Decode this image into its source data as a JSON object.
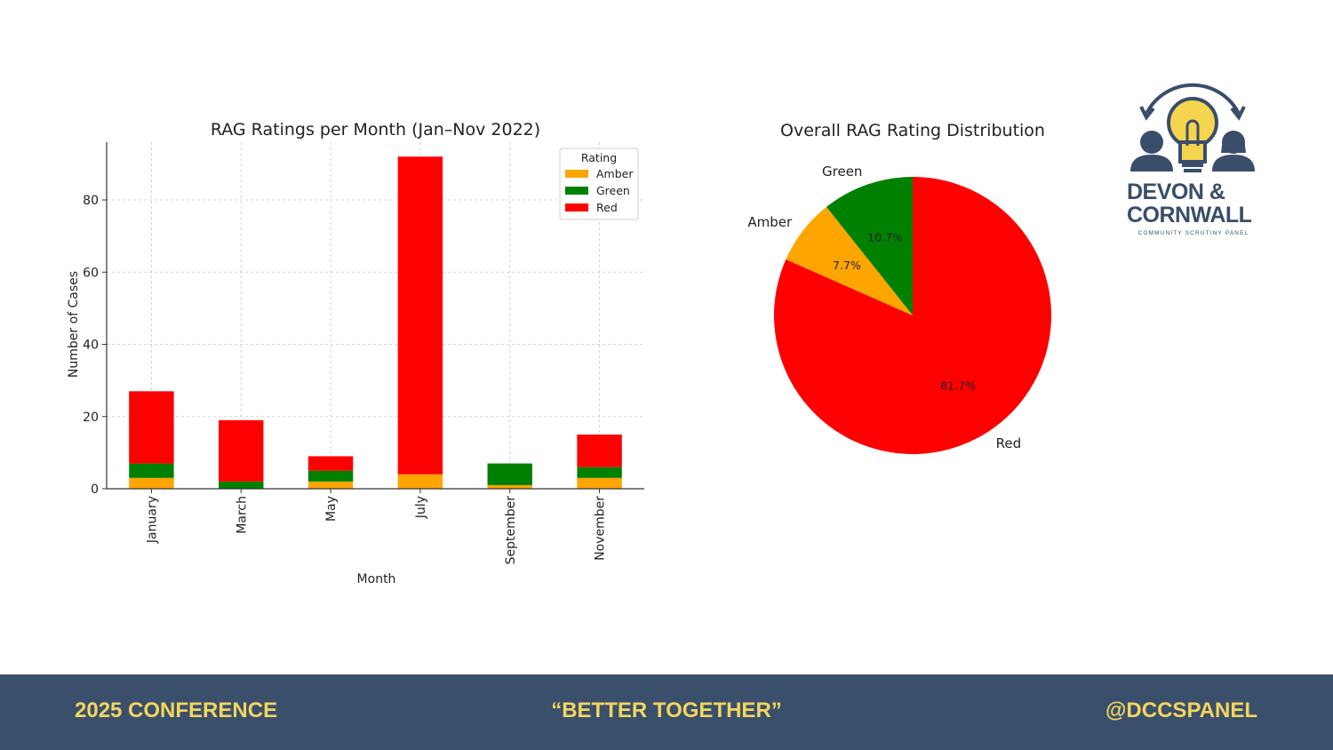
{
  "chart_data": [
    {
      "type": "bar",
      "stacked": true,
      "title": "RAG Ratings per Month (Jan–Nov 2022)",
      "xlabel": "Month",
      "ylabel": "Number of Cases",
      "categories": [
        "January",
        "March",
        "May",
        "July",
        "September",
        "November"
      ],
      "series": [
        {
          "name": "Amber",
          "color": "#ffa500",
          "values": [
            3,
            0,
            2,
            4,
            1,
            3
          ]
        },
        {
          "name": "Green",
          "color": "#008000",
          "values": [
            4,
            2,
            3,
            0,
            6,
            3
          ]
        },
        {
          "name": "Red",
          "color": "#ff0000",
          "values": [
            20,
            17,
            4,
            88,
            0,
            9
          ]
        }
      ],
      "yticks": [
        0,
        20,
        40,
        60,
        80
      ],
      "ylim": [
        0,
        96
      ],
      "grid": true,
      "legend": {
        "title": "Rating",
        "position": "top-right"
      }
    },
    {
      "type": "pie",
      "title": "Overall RAG Rating Distribution",
      "slices": [
        {
          "label": "Green",
          "value": 10.7,
          "pct_label": "10.7%",
          "color": "#008000"
        },
        {
          "label": "Amber",
          "value": 7.7,
          "pct_label": "7.7%",
          "color": "#ffa500"
        },
        {
          "label": "Red",
          "value": 81.7,
          "pct_label": "81.7%",
          "color": "#ff0000"
        }
      ],
      "start_angle_deg": 90,
      "direction": "counterclockwise"
    }
  ],
  "logo": {
    "line1": "DEVON &",
    "line2": "CORNWALL",
    "subtitle": "COMMUNITY SCRUTINY PANEL",
    "color": "#3a4d6b",
    "bulb_color": "#f5d54e"
  },
  "footer": {
    "left": "2025 CONFERENCE",
    "center": "“BETTER TOGETHER”",
    "right": "@DCCSPANEL",
    "bg_color": "#3a4f6c",
    "text_color": "#f3d65c"
  }
}
